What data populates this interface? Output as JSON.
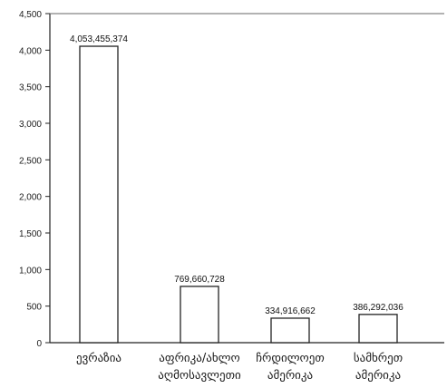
{
  "chart_data": {
    "type": "bar",
    "title": "",
    "xlabel": "",
    "ylabel": "",
    "categories": [
      [
        "ევრაზია"
      ],
      [
        "აფრიკა/ახლო",
        "აღმოსავლეთი"
      ],
      [
        "ჩრდილოეთ",
        "ამერიკა"
      ],
      [
        "სამხრეთ",
        "ამერიკა"
      ]
    ],
    "values": [
      4053455374,
      769660728,
      334916662,
      386292036
    ],
    "value_labels": [
      "4,053,455,374",
      "769,660,728",
      "334,916,662",
      "386,292,036"
    ],
    "ylim": [
      0,
      4500
    ],
    "y_unit_divisor": 1000000,
    "yticks": [
      0,
      500,
      1000,
      1500,
      2000,
      2500,
      3000,
      3500,
      4000,
      4500
    ],
    "ytick_labels": [
      "0",
      "500",
      "1,000",
      "1,500",
      "2,000",
      "2,500",
      "3,000",
      "3,500",
      "4,000",
      "4,500"
    ],
    "grid": false,
    "legend": "none",
    "colors": {
      "bar_fill": "#ffffff",
      "bar_stroke": "#222222",
      "axis": "#222222",
      "text": "#1a1a1a"
    }
  }
}
